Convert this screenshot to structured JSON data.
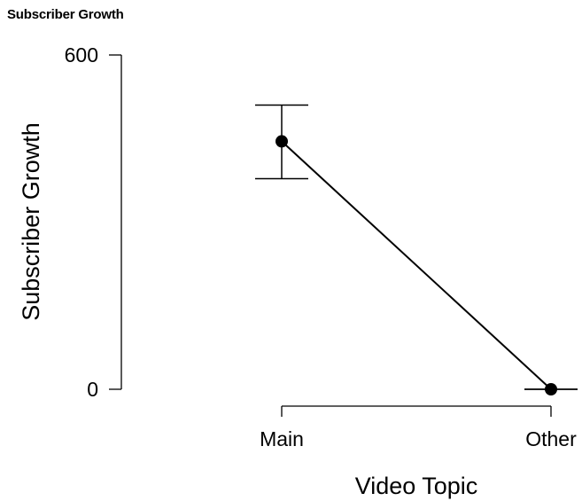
{
  "panel_title": "Subscriber Growth",
  "chart_data": {
    "type": "line",
    "categories": [
      "Main",
      "Other"
    ],
    "series": [
      {
        "values": [
          445,
          0
        ],
        "error_bars": [
          [
            378,
            510
          ],
          [
            0,
            0
          ]
        ],
        "color": "#000000"
      }
    ],
    "xlabel": "Video Topic",
    "ylabel": "Subscriber Growth",
    "ylim": [
      0,
      600
    ],
    "y_ticks": [
      0,
      600
    ],
    "grid": false
  }
}
